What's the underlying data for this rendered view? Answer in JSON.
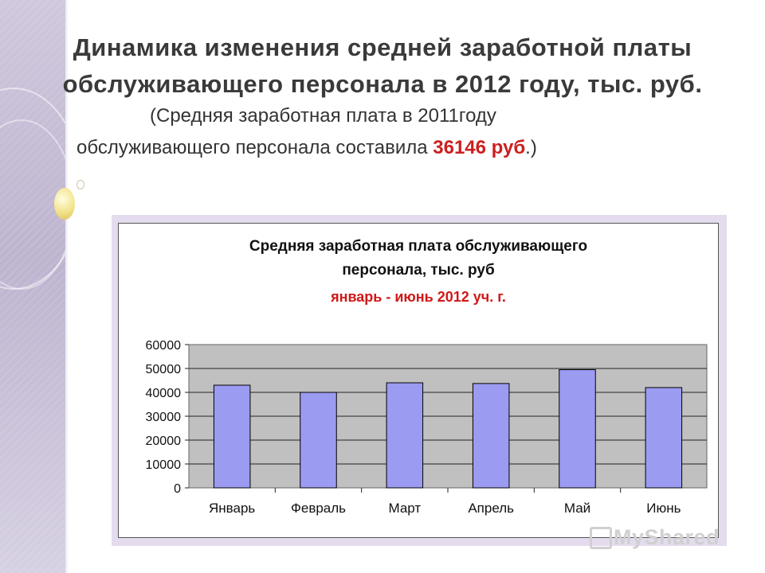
{
  "slide": {
    "title_line1": "Динамика изменения средней заработной платы",
    "title_line2": "обслуживающего персонала в  2012 году, тыс. руб.",
    "subtitle_line1": "(Средняя заработная плата в 2011году",
    "subtitle_line2_prefix": "обслуживающего персонала составила  ",
    "subtitle_highlight": "36146 руб",
    "subtitle_line2_suffix": ".)"
  },
  "colors": {
    "bar_fill": "#9b9bf2",
    "plot_bg": "#c0c0c0",
    "accent_red": "#cc1f1f"
  },
  "chart_data": {
    "type": "bar",
    "title_line1": "Средняя заработная плата обслуживающего",
    "title_line2": "персонала, тыс. руб",
    "subtitle": "январь - июнь 2012 уч. г.",
    "categories": [
      "Январь",
      "Февраль",
      "Март",
      "Апрель",
      "Май",
      "Июнь"
    ],
    "values": [
      43000,
      40000,
      44000,
      43700,
      49500,
      42000
    ],
    "ylim": [
      0,
      60000
    ],
    "yticks": [
      "0",
      "10000",
      "20000",
      "30000",
      "40000",
      "50000",
      "60000"
    ],
    "grid": true,
    "legend": "none"
  },
  "watermark": "MyShared"
}
